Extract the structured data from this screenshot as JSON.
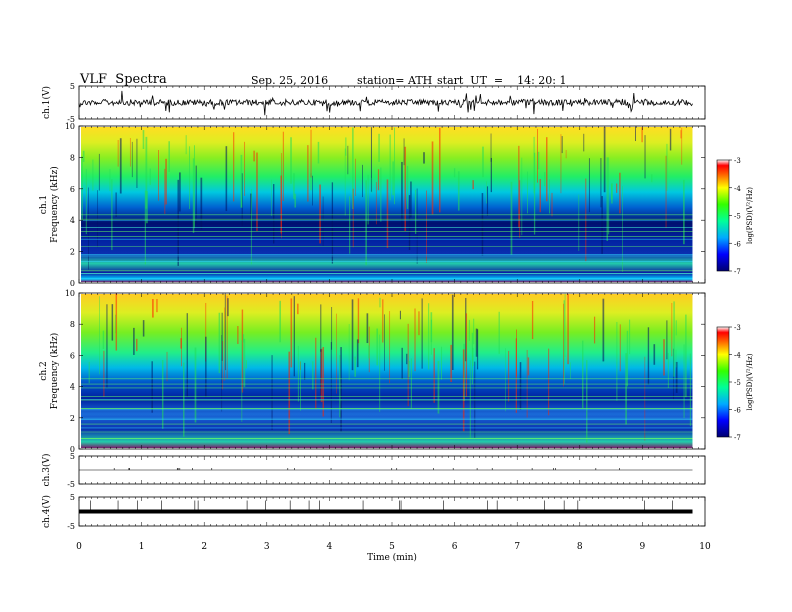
{
  "header": {
    "title": "VLF  Spectra",
    "date": "Sep. 25, 2016",
    "station": "station= ATH",
    "start": "start  UT  =    14: 20: 1"
  },
  "chart_data": [
    {
      "type": "line",
      "panel": "ch1-waveform",
      "ylabel": "ch.1(V)",
      "ylim": [
        -5,
        5
      ],
      "yticks": [
        5,
        -5
      ],
      "xlim": [
        0,
        10
      ],
      "series": [
        {
          "x_range": [
            0,
            9.8
          ],
          "baseline": 0,
          "color": "#000000"
        }
      ]
    },
    {
      "type": "heatmap",
      "panel": "ch1-spectrogram",
      "ylabel": "ch.1\nFrequency  (kHz)",
      "ylim": [
        0,
        10
      ],
      "yticks": [
        0,
        2,
        4,
        6,
        8,
        10
      ],
      "xlim": [
        0,
        10
      ],
      "x_data_range": [
        0,
        9.8
      ],
      "colorbar": {
        "label": "log(PSD)(V²/Hz)",
        "range": [
          -7,
          -3
        ],
        "ticks": [
          "-3",
          "-4",
          "-5",
          "-6",
          "-7"
        ]
      }
    },
    {
      "type": "heatmap",
      "panel": "ch2-spectrogram",
      "ylabel": "ch.2\nFrequency  (kHz)",
      "ylim": [
        0,
        10
      ],
      "yticks": [
        0,
        2,
        4,
        6,
        8,
        10
      ],
      "xlim": [
        0,
        10
      ],
      "x_data_range": [
        0,
        9.8
      ],
      "colorbar": {
        "label": "log(PSD)(V²/Hz)",
        "range": [
          -7,
          -3
        ],
        "ticks": [
          "-3",
          "-4",
          "-5",
          "-6",
          "-7"
        ]
      }
    },
    {
      "type": "line",
      "panel": "ch3-waveform",
      "ylabel": "ch.3(V)",
      "ylim": [
        -5,
        5
      ],
      "yticks": [
        5,
        -5
      ],
      "xlim": [
        0,
        10
      ],
      "series": [
        {
          "x_range": [
            0,
            9.8
          ],
          "baseline": 0,
          "color": "#000000"
        }
      ]
    },
    {
      "type": "line",
      "panel": "ch4-waveform",
      "ylabel": "ch.4(V)",
      "ylim": [
        -5,
        5
      ],
      "yticks": [
        5,
        -5
      ],
      "xlim": [
        0,
        10
      ],
      "series": [
        {
          "x_range": [
            0,
            9.8
          ],
          "baseline": 0,
          "color": "#000000"
        }
      ]
    }
  ],
  "xaxis": {
    "label": "Time  (min)",
    "ticks": [
      "0",
      "1",
      "2",
      "3",
      "4",
      "5",
      "6",
      "7",
      "8",
      "9",
      "10"
    ]
  }
}
